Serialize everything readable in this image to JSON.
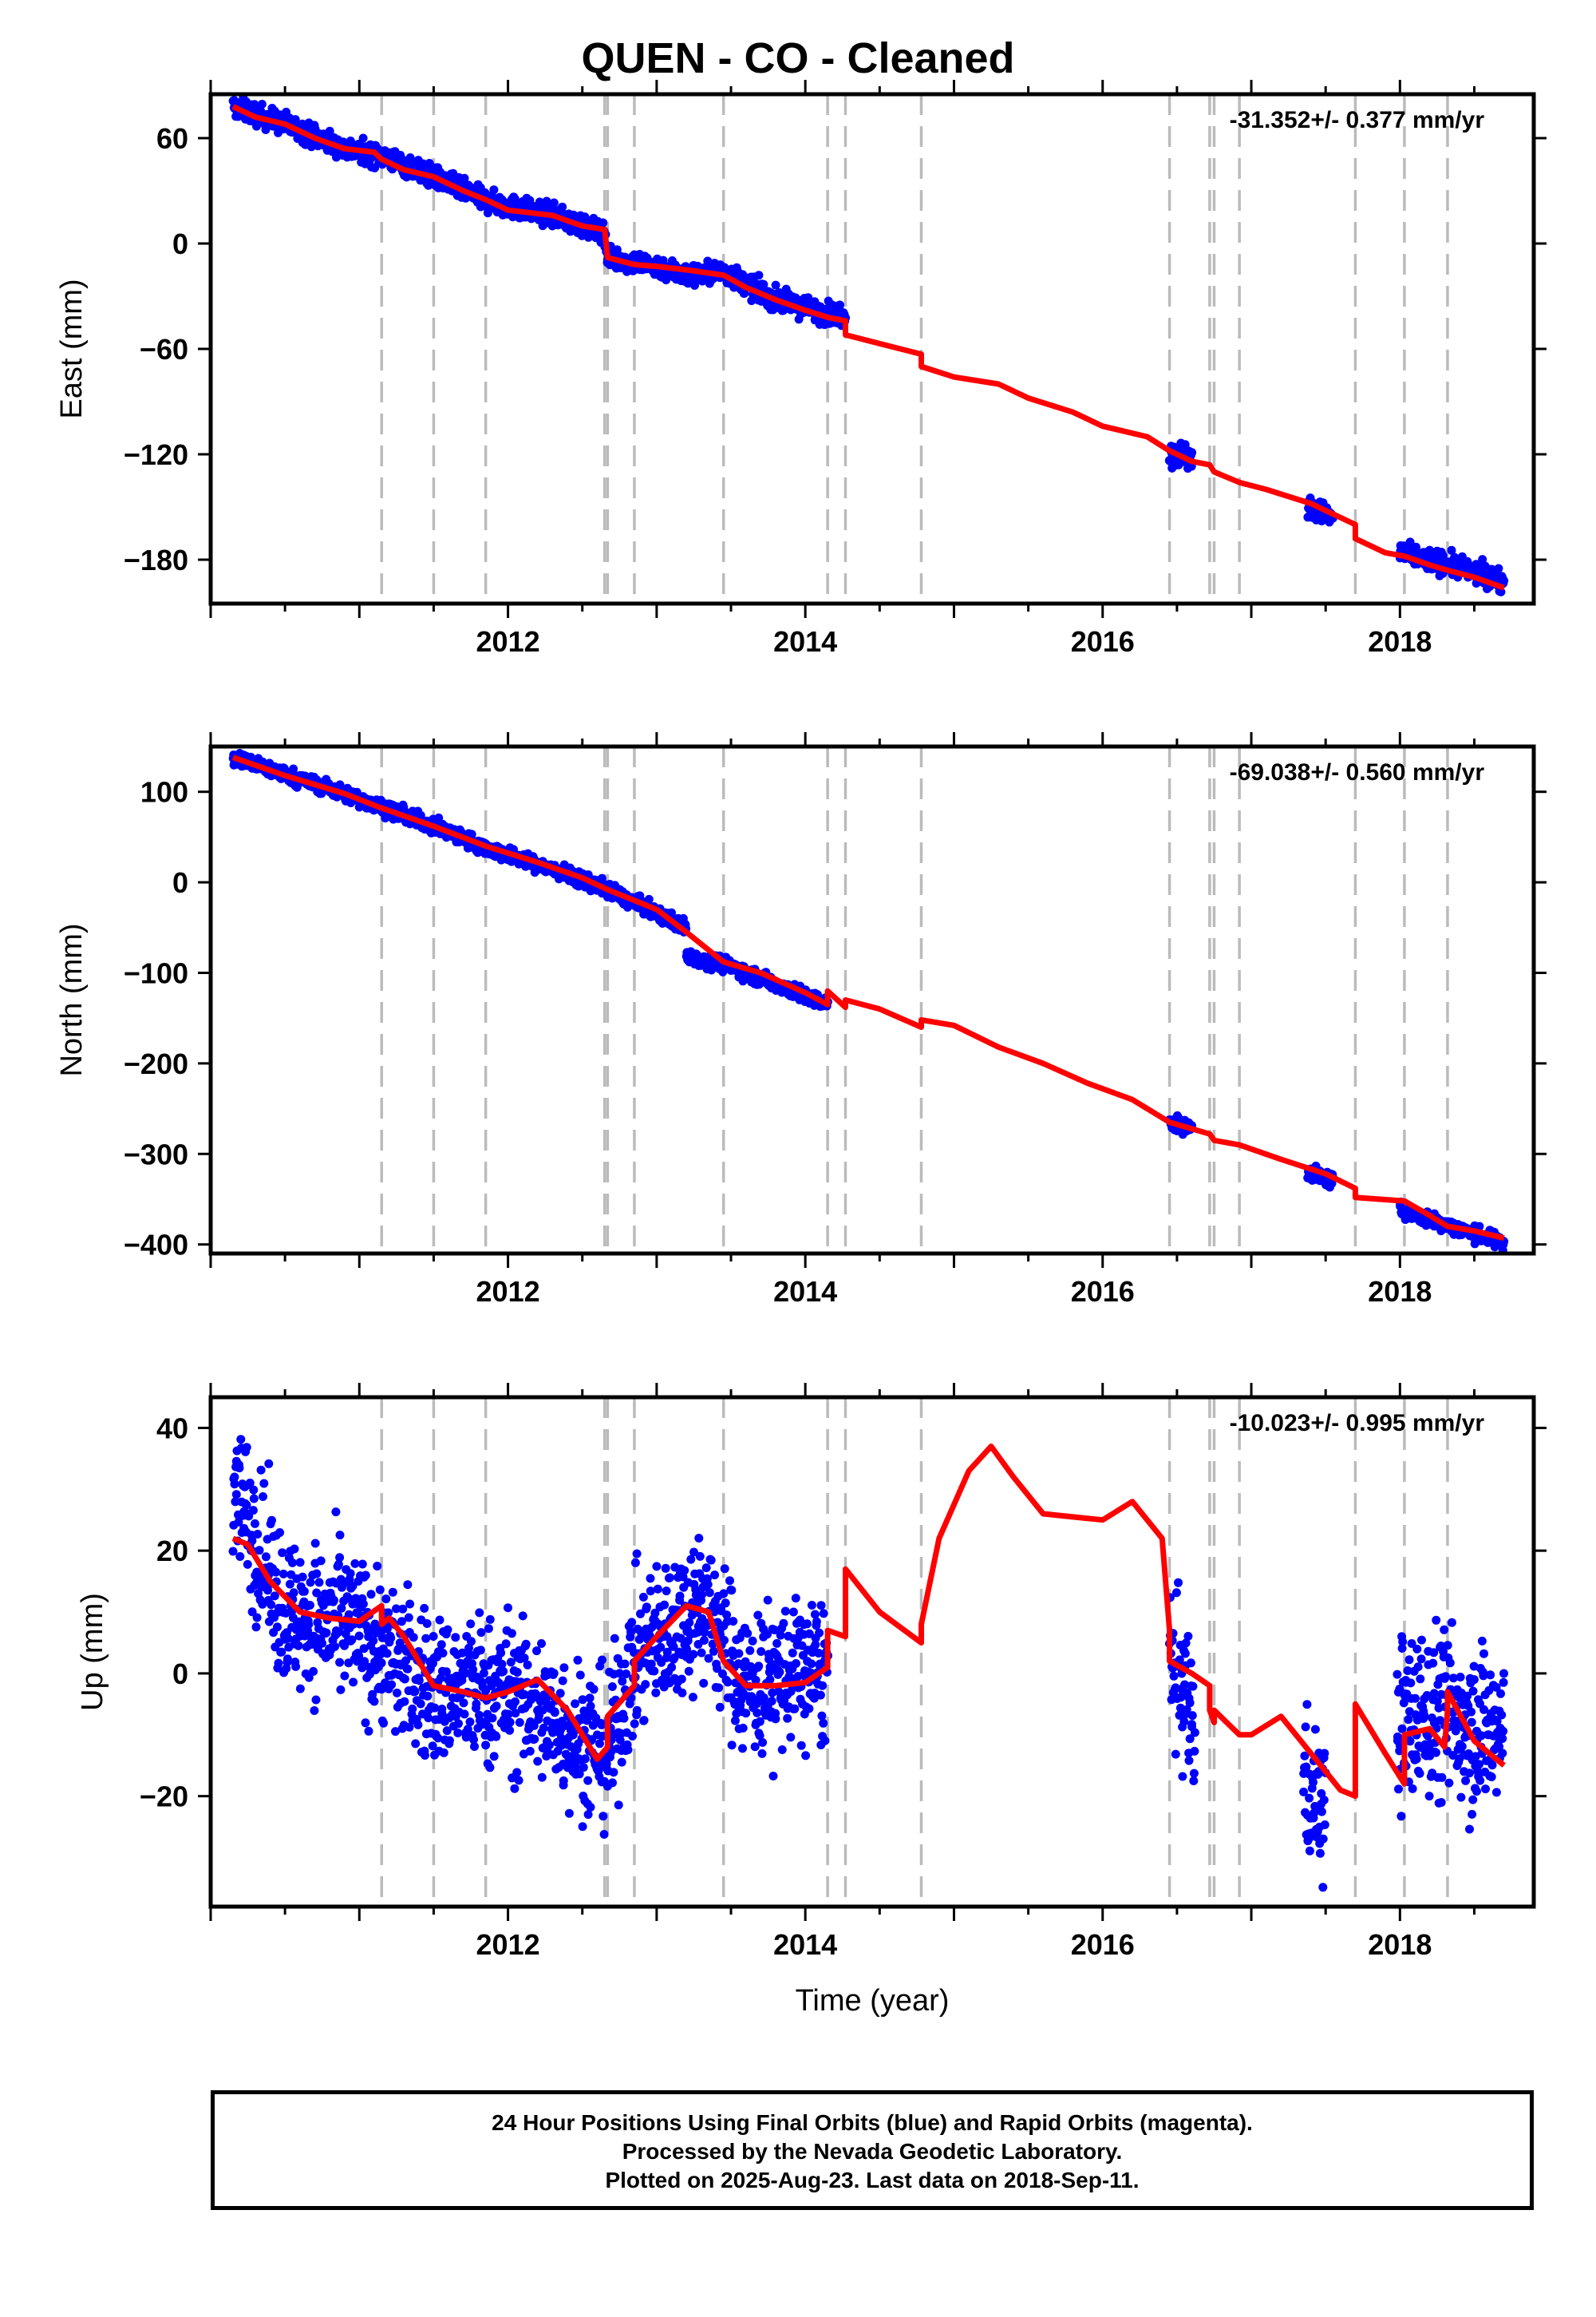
{
  "chart_data": {
    "type": "scatter",
    "title": "QUEN  - CO - Cleaned",
    "xlabel": "Time (year)",
    "xlim": [
      2010.0,
      2018.9
    ],
    "x_ticks": [
      2012,
      2014,
      2016,
      2018
    ],
    "vertical_dashed_lines": [
      2011.15,
      2011.5,
      2011.85,
      2012.65,
      2012.67,
      2012.85,
      2013.45,
      2014.15,
      2014.27,
      2014.78,
      2016.45,
      2016.72,
      2016.75,
      2016.92,
      2017.7,
      2018.03,
      2018.32
    ],
    "series_legend": "Final Orbits (blue) points, model fit (red line)",
    "panels": [
      {
        "name": "East",
        "ylabel": "East (mm)",
        "ylim": [
          -205,
          85
        ],
        "y_ticks": [
          60,
          0,
          -60,
          -120,
          -180
        ],
        "rate_annotation": "-31.352+/- 0.377 mm/yr",
        "model_line": {
          "x": [
            2010.15,
            2010.3,
            2010.5,
            2010.7,
            2010.9,
            2011.1,
            2011.15,
            2011.3,
            2011.5,
            2011.7,
            2011.85,
            2012.0,
            2012.3,
            2012.5,
            2012.65,
            2012.67,
            2012.85,
            2013.0,
            2013.2,
            2013.45,
            2013.6,
            2013.8,
            2014.0,
            2014.15,
            2014.27,
            2014.27,
            2014.5,
            2014.78,
            2014.78,
            2015.0,
            2015.3,
            2015.5,
            2015.8,
            2016.0,
            2016.3,
            2016.45,
            2016.6,
            2016.72,
            2016.75,
            2016.92,
            2017.1,
            2017.4,
            2017.7,
            2017.7,
            2017.9,
            2018.03,
            2018.2,
            2018.32,
            2018.5,
            2018.7
          ],
          "y": [
            78,
            72,
            68,
            60,
            54,
            52,
            48,
            42,
            38,
            30,
            25,
            19,
            16,
            10,
            8,
            -8,
            -12,
            -13,
            -15,
            -18,
            -25,
            -32,
            -38,
            -42,
            -44,
            -52,
            -57,
            -63,
            -70,
            -76,
            -80,
            -88,
            -96,
            -104,
            -110,
            -118,
            -124,
            -126,
            -130,
            -136,
            -140,
            -148,
            -160,
            -168,
            -176,
            -178,
            -183,
            -186,
            -190,
            -196
          ]
        },
        "point_segments": [
          {
            "x_range": [
              2010.15,
              2014.27
            ],
            "center": [
              [
                2010.15,
                78
              ],
              [
                2010.5,
                68
              ],
              [
                2010.9,
                54
              ],
              [
                2011.15,
                50
              ],
              [
                2011.5,
                38
              ],
              [
                2011.85,
                24
              ],
              [
                2012.3,
                16
              ],
              [
                2012.65,
                6
              ],
              [
                2012.67,
                -8
              ],
              [
                2013.0,
                -13
              ],
              [
                2013.2,
                -18
              ],
              [
                2013.45,
                -16
              ],
              [
                2013.8,
                -32
              ],
              [
                2014.15,
                -40
              ]
            ],
            "spread": 3
          },
          {
            "x_range": [
              2016.45,
              2016.6
            ],
            "center": [
              [
                2016.45,
                -118
              ],
              [
                2016.6,
                -122
              ]
            ],
            "spread": 4
          },
          {
            "x_range": [
              2017.38,
              2017.55
            ],
            "center": [
              [
                2017.38,
                -150
              ],
              [
                2017.55,
                -156
              ]
            ],
            "spread": 3
          },
          {
            "x_range": [
              2018.0,
              2018.7
            ],
            "center": [
              [
                2018.0,
                -176
              ],
              [
                2018.3,
                -182
              ],
              [
                2018.7,
                -192
              ]
            ],
            "spread": 3
          }
        ]
      },
      {
        "name": "North",
        "ylabel": "North (mm)",
        "ylim": [
          -410,
          150
        ],
        "y_ticks": [
          100,
          0,
          -100,
          -200,
          -300,
          -400
        ],
        "rate_annotation": "-69.038+/- 0.560 mm/yr",
        "model_line": {
          "x": [
            2010.15,
            2010.5,
            2010.9,
            2011.15,
            2011.5,
            2011.85,
            2012.2,
            2012.5,
            2012.67,
            2012.85,
            2013.0,
            2013.2,
            2013.45,
            2013.7,
            2014.0,
            2014.15,
            2014.15,
            2014.27,
            2014.27,
            2014.5,
            2014.78,
            2014.78,
            2015.0,
            2015.3,
            2015.6,
            2015.9,
            2016.2,
            2016.45,
            2016.72,
            2016.75,
            2016.92,
            2017.2,
            2017.5,
            2017.7,
            2017.7,
            2018.03,
            2018.2,
            2018.32,
            2018.5,
            2018.7
          ],
          "y": [
            138,
            118,
            98,
            82,
            62,
            40,
            22,
            5,
            -8,
            -20,
            -30,
            -55,
            -88,
            -100,
            -122,
            -135,
            -120,
            -138,
            -130,
            -140,
            -160,
            -152,
            -158,
            -182,
            -200,
            -222,
            -240,
            -265,
            -278,
            -285,
            -290,
            -306,
            -322,
            -338,
            -348,
            -352,
            -368,
            -380,
            -385,
            -393
          ]
        },
        "point_segments": [
          {
            "x_range": [
              2010.15,
              2014.15
            ],
            "center": [
              [
                2010.15,
                138
              ],
              [
                2010.9,
                98
              ],
              [
                2011.5,
                62
              ],
              [
                2011.85,
                38
              ],
              [
                2012.5,
                3
              ],
              [
                2012.67,
                -8
              ],
              [
                2013.0,
                -35
              ],
              [
                2013.2,
                -50
              ],
              [
                2013.2,
                -82
              ],
              [
                2013.45,
                -90
              ],
              [
                2014.15,
                -135
              ]
            ],
            "spread": 4
          },
          {
            "x_range": [
              2016.45,
              2016.6
            ],
            "center": [
              [
                2016.45,
                -265
              ],
              [
                2016.6,
                -272
              ]
            ],
            "spread": 4
          },
          {
            "x_range": [
              2017.38,
              2017.55
            ],
            "center": [
              [
                2017.38,
                -320
              ],
              [
                2017.55,
                -330
              ]
            ],
            "spread": 4
          },
          {
            "x_range": [
              2018.0,
              2018.7
            ],
            "center": [
              [
                2018.0,
                -362
              ],
              [
                2018.3,
                -378
              ],
              [
                2018.7,
                -398
              ]
            ],
            "spread": 4
          }
        ]
      },
      {
        "name": "Up",
        "ylabel": "Up (mm)",
        "ylim": [
          -38,
          45
        ],
        "y_ticks": [
          40,
          20,
          0,
          -20
        ],
        "rate_annotation": "-10.023+/- 0.995 mm/yr",
        "model_line": {
          "x": [
            2010.15,
            2010.25,
            2010.4,
            2010.6,
            2010.8,
            2011.0,
            2011.15,
            2011.15,
            2011.2,
            2011.3,
            2011.5,
            2011.7,
            2011.85,
            2012.0,
            2012.2,
            2012.4,
            2012.6,
            2012.67,
            2012.67,
            2012.85,
            2012.85,
            2013.0,
            2013.2,
            2013.35,
            2013.45,
            2013.6,
            2013.8,
            2014.0,
            2014.15,
            2014.15,
            2014.27,
            2014.27,
            2014.5,
            2014.78,
            2014.78,
            2014.9,
            2015.1,
            2015.25,
            2015.4,
            2015.6,
            2015.8,
            2016.0,
            2016.2,
            2016.4,
            2016.45,
            2016.45,
            2016.6,
            2016.72,
            2016.72,
            2016.75,
            2016.75,
            2016.92,
            2017.0,
            2017.2,
            2017.4,
            2017.6,
            2017.7,
            2017.7,
            2017.9,
            2018.03,
            2018.03,
            2018.2,
            2018.3,
            2018.32,
            2018.32,
            2018.5,
            2018.7
          ],
          "y": [
            22,
            21,
            15,
            10,
            9,
            8.5,
            11,
            8,
            9,
            6,
            -2,
            -3,
            -4,
            -3,
            -1,
            -6,
            -14,
            -12,
            -7,
            -2,
            2,
            6,
            11,
            10,
            2,
            -2,
            -2,
            -1.5,
            1,
            7,
            6,
            17,
            10,
            5,
            8,
            22,
            33,
            37,
            32,
            26,
            25.5,
            25,
            28,
            22,
            7,
            2,
            0,
            -2,
            -6,
            -8,
            -6,
            -10,
            -10,
            -7,
            -13,
            -19,
            -20,
            -5,
            -13,
            -18,
            -10,
            -9,
            -12,
            -6,
            -3,
            -11,
            -15
          ]
        },
        "point_segments": [
          {
            "x_range": [
              2010.15,
              2014.15
            ],
            "center": [
              [
                2010.15,
                32
              ],
              [
                2010.3,
                22
              ],
              [
                2010.5,
                10
              ],
              [
                2011.0,
                7
              ],
              [
                2011.5,
                -3
              ],
              [
                2012.0,
                -3
              ],
              [
                2012.67,
                -13
              ],
              [
                2012.85,
                2
              ],
              [
                2013.3,
                12
              ],
              [
                2013.6,
                -2
              ],
              [
                2014.15,
                1
              ]
            ],
            "spread": 6
          },
          {
            "x_range": [
              2016.45,
              2016.62
            ],
            "center": [
              [
                2016.45,
                2
              ],
              [
                2016.62,
                -8
              ]
            ],
            "spread": 6
          },
          {
            "x_range": [
              2017.35,
              2017.5
            ],
            "center": [
              [
                2017.35,
                -18
              ],
              [
                2017.5,
                -22
              ]
            ],
            "spread": 6
          },
          {
            "x_range": [
              2017.98,
              2018.7
            ],
            "center": [
              [
                2017.98,
                -8
              ],
              [
                2018.3,
                -6
              ],
              [
                2018.7,
                -10
              ]
            ],
            "spread": 7
          }
        ]
      }
    ]
  },
  "footer": {
    "line1": "24 Hour Positions Using Final Orbits (blue) and Rapid Orbits (magenta).",
    "line2": "Processed by the Nevada Geodetic Laboratory.",
    "line3": "Plotted on 2025-Aug-23. Last data on 2018-Sep-11."
  },
  "colors": {
    "points": "#0000ff",
    "model": "#ff0000",
    "dashed": "#bbbbbb",
    "axis": "#000000"
  }
}
